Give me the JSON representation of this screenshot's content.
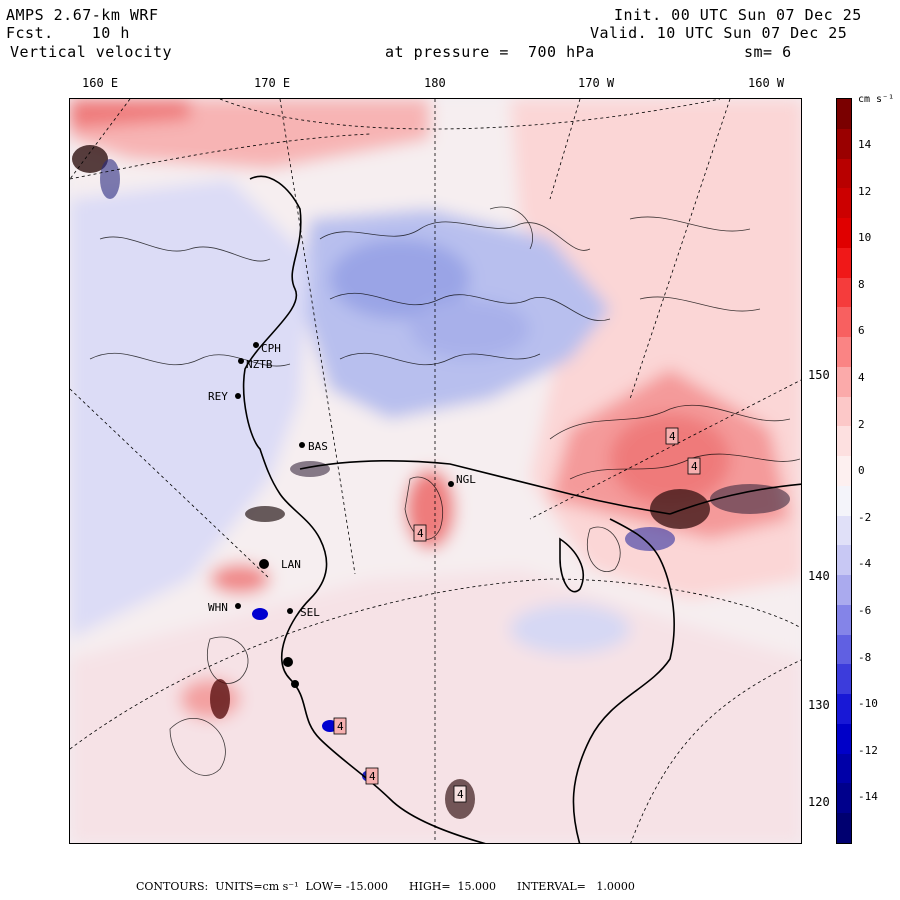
{
  "header": {
    "model": "AMPS 2.67-km WRF",
    "forecast": "Fcst.    10 h",
    "field": "Vertical velocity",
    "init": "Init. 00 UTC Sun 07 Dec 25",
    "valid": "Valid. 10 UTC Sun 07 Dec 25",
    "level": "at pressure =  700 hPa",
    "smoothing": "sm= 6"
  },
  "axes": {
    "lon_labels": [
      "160 E",
      "170 E",
      "180",
      "170 W",
      "160 W"
    ],
    "lat_labels": [
      "150 W",
      "140 W",
      "130 W",
      "120 W"
    ]
  },
  "colorbar": {
    "units": "cm s⁻¹",
    "tick_labels": [
      "14",
      "12",
      "10",
      "8",
      "6",
      "4",
      "2",
      "0",
      "-2",
      "-4",
      "-6",
      "-8",
      "-10",
      "-12",
      "-14"
    ],
    "colors": [
      "#7a0000",
      "#9a0000",
      "#b80000",
      "#cc0000",
      "#e00000",
      "#f01818",
      "#f53c3c",
      "#f86060",
      "#fa8484",
      "#fbaaaa",
      "#fcc8c8",
      "#fde0e0",
      "#fdf0f0",
      "#f4f4fa",
      "#e0e0f8",
      "#c8c8f4",
      "#aaaaee",
      "#8484e8",
      "#6060e2",
      "#3c3cdc",
      "#1818d6",
      "#0000c8",
      "#0000a8",
      "#00008c",
      "#000070"
    ]
  },
  "stations": [
    "CPH",
    "NZTB",
    "REY",
    "BAS",
    "NGL",
    "LAN",
    "WHN",
    "SEL"
  ],
  "box_labels": [
    "4",
    "4",
    "4",
    "4",
    "4",
    "4"
  ],
  "footer": {
    "text": "CONTOURS:  UNITS=cm s⁻¹  LOW= -15.000      HIGH=  15.000      INTERVAL=   1.0000"
  }
}
